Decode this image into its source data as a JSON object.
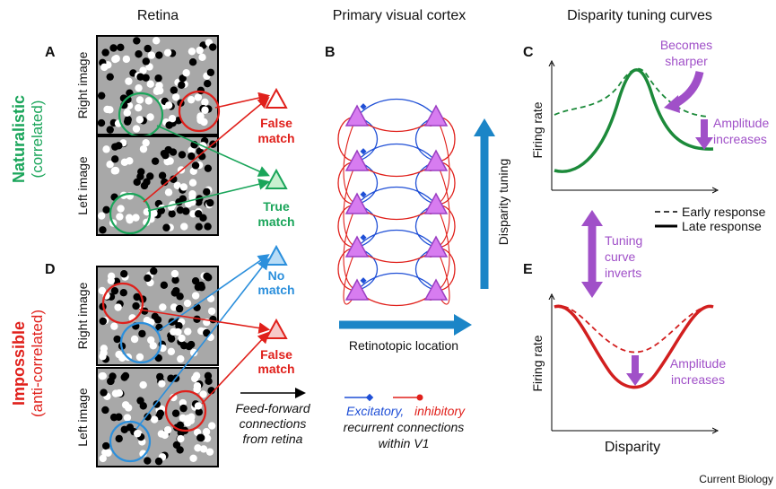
{
  "columns": {
    "retina": "Retina",
    "cortex": "Primary visual cortex",
    "tuning": "Disparity tuning curves"
  },
  "panels": [
    "A",
    "B",
    "C",
    "D",
    "E"
  ],
  "rows": [
    {
      "label": "Naturalistic",
      "sublabel": "(correlated)"
    },
    {
      "label": "Impossible",
      "sublabel": "(anti-correlated)"
    }
  ],
  "images": {
    "right": "Right image",
    "left": "Left image"
  },
  "matches": [
    {
      "lines": [
        "False",
        "match"
      ]
    },
    {
      "lines": [
        "True",
        "match"
      ]
    },
    {
      "lines": [
        "No",
        "match"
      ]
    },
    {
      "lines": [
        "False",
        "match"
      ]
    }
  ],
  "cortex": {
    "vertical_axis": "Disparity tuning",
    "horizontal_axis": "Retinotopic location"
  },
  "legend_feedforward": [
    "Feed-forward",
    "connections",
    "from retina"
  ],
  "legend_recurrent": {
    "excitatory": "Excitatory,",
    "inhibitory": "inhibitory",
    "lines": [
      "recurrent connections",
      "within V1"
    ]
  },
  "panel_c": {
    "annotation_top": [
      "Becomes",
      "sharper"
    ],
    "annotation_right": [
      "Amplitude",
      "increases"
    ],
    "y_label": "Firing rate",
    "legend": [
      "Early response",
      "Late response"
    ]
  },
  "transition": [
    "Tuning",
    "curve",
    "inverts"
  ],
  "panel_e": {
    "y_label": "Firing rate",
    "x_label": "Disparity",
    "annotation": [
      "Amplitude",
      "increases"
    ]
  },
  "footer": "Current Biology"
}
